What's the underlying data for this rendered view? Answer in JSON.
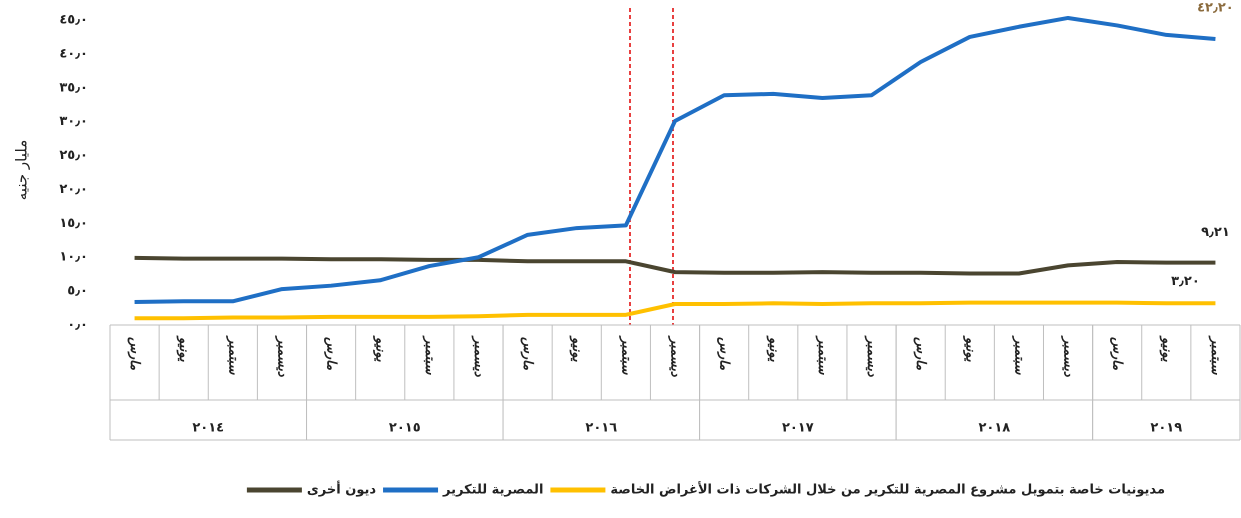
{
  "chart_data": {
    "type": "line",
    "y_label": "مليار جنيه",
    "categories": [
      "مارس",
      "يونيو",
      "سبتمبر",
      "ديسمبر",
      "مارس",
      "يونيو",
      "سبتمبر",
      "ديسمبر",
      "مارس",
      "يونيو",
      "سبتمبر",
      "ديسمبر",
      "مارس",
      "يونيو",
      "سبتمبر",
      "ديسمبر",
      "مارس",
      "يونيو",
      "سبتمبر",
      "ديسمبر",
      "مارس",
      "يونيو",
      "سبتمبر"
    ],
    "groups": [
      {
        "name": "٢٠١٤",
        "size": 4
      },
      {
        "name": "٢٠١٥",
        "size": 4
      },
      {
        "name": "٢٠١٦",
        "size": 4
      },
      {
        "name": "٢٠١٧",
        "size": 4
      },
      {
        "name": "٢٠١٨",
        "size": 4
      },
      {
        "name": "٢٠١٩",
        "size": 3
      }
    ],
    "series": [
      {
        "name": "ديون أخرى",
        "color": "#4a4530",
        "values": [
          9.9,
          9.8,
          9.8,
          9.8,
          9.7,
          9.7,
          9.6,
          9.6,
          9.4,
          9.4,
          9.4,
          7.8,
          7.7,
          7.7,
          7.8,
          7.7,
          7.7,
          7.6,
          7.6,
          8.8,
          9.3,
          9.2,
          9.21
        ],
        "value_labels": [
          null,
          null,
          null,
          null,
          null,
          null,
          null,
          null,
          null,
          null,
          null,
          null,
          null,
          null,
          null,
          null,
          null,
          null,
          null,
          null,
          null,
          null,
          "٩٫٢١"
        ]
      },
      {
        "name": "المصرية للتكرير",
        "color": "#1f6fc5",
        "values": [
          3.4,
          3.5,
          3.5,
          5.3,
          5.8,
          6.6,
          8.7,
          10.0,
          13.3,
          14.3,
          14.7,
          30.1,
          33.9,
          34.1,
          33.5,
          33.9,
          38.8,
          42.5,
          44.0,
          45.3,
          44.2,
          42.8,
          42.2
        ],
        "value_labels": [
          null,
          null,
          null,
          null,
          null,
          null,
          null,
          null,
          null,
          null,
          null,
          null,
          null,
          null,
          null,
          null,
          null,
          null,
          null,
          null,
          null,
          null,
          "٤٢٫٢٠"
        ]
      },
      {
        "name": "مديونيات خاصة بتمويل مشروع المصرية للتكرير من خلال الشركات ذات الأغراض الخاصة",
        "color": "#ffc000",
        "values": [
          1.0,
          1.0,
          1.1,
          1.1,
          1.2,
          1.2,
          1.2,
          1.3,
          1.5,
          1.5,
          1.5,
          3.1,
          3.1,
          3.2,
          3.1,
          3.2,
          3.2,
          3.3,
          3.3,
          3.3,
          3.3,
          3.2,
          3.2
        ],
        "value_labels": [
          null,
          null,
          null,
          null,
          null,
          null,
          null,
          null,
          null,
          null,
          null,
          null,
          null,
          null,
          null,
          null,
          null,
          null,
          null,
          null,
          null,
          null,
          "٣٫٢٠"
        ]
      }
    ],
    "ylim": [
      0,
      45
    ],
    "yticks": [
      {
        "value": 0,
        "label": "٠٫٠"
      },
      {
        "value": 5,
        "label": "٥٫٠"
      },
      {
        "value": 10,
        "label": "١٠٫٠"
      },
      {
        "value": 15,
        "label": "١٥٫٠"
      },
      {
        "value": 20,
        "label": "٢٠٫٠"
      },
      {
        "value": 25,
        "label": "٢٥٫٠"
      },
      {
        "value": 30,
        "label": "٣٠٫٠"
      },
      {
        "value": 35,
        "label": "٣٥٫٠"
      },
      {
        "value": 40,
        "label": "٤٠٫٠"
      },
      {
        "value": 45,
        "label": "٤٥٫٠"
      }
    ],
    "grid": false
  }
}
